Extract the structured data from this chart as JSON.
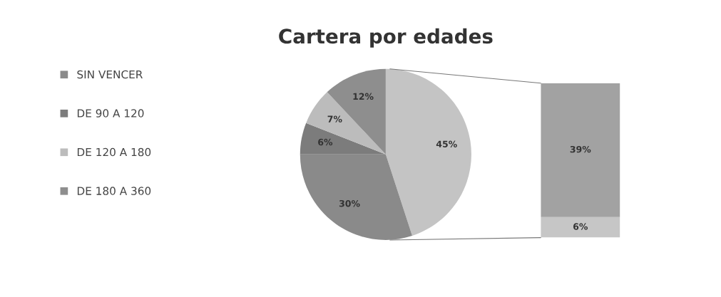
{
  "chart_data": [
    {
      "type": "pie",
      "title": "Cartera por edades",
      "categories": [
        null,
        "SIN VENCER",
        "DE 90 A 120",
        "DE 120 A 180",
        "DE 180 A 360"
      ],
      "values": [
        45,
        30,
        6,
        7,
        12
      ],
      "value_labels": [
        "45%",
        "30%",
        "6%",
        "7%",
        "12%"
      ],
      "colors": [
        "#c4c4c4",
        "#8a8a8a",
        "#7c7c7c",
        "#bcbcbc",
        "#8e8e8e"
      ],
      "legend": "left"
    },
    {
      "type": "bar",
      "stacked": true,
      "categories": [
        null
      ],
      "series": [
        {
          "color": "#c6c6c6",
          "values": [
            6
          ],
          "value_labels": [
            "6%"
          ]
        },
        {
          "color": "#a2a2a2",
          "values": [
            39
          ],
          "value_labels": [
            "39%"
          ]
        }
      ]
    }
  ]
}
